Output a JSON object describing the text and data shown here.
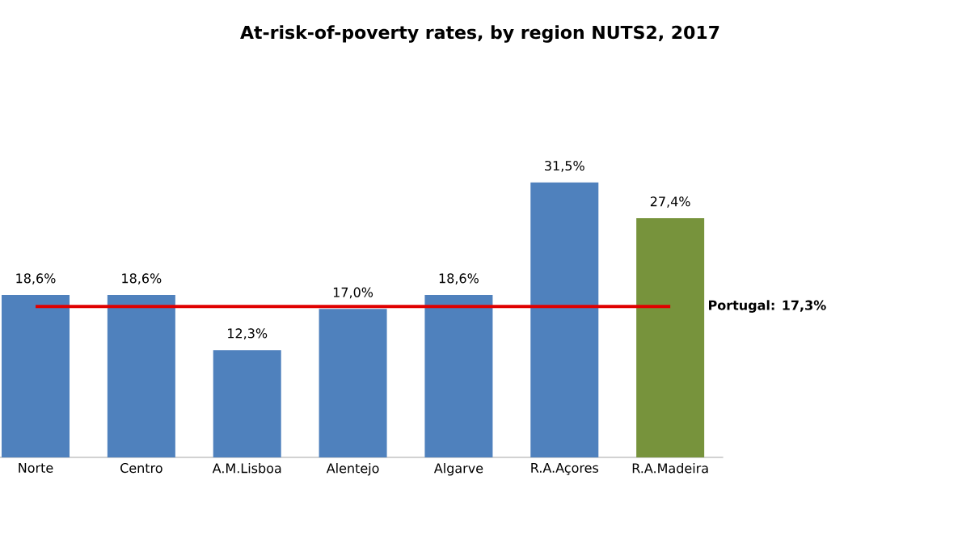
{
  "chart_data": {
    "type": "bar",
    "title": "At-risk-of-poverty rates,  by region NUTS2, 2017",
    "categories": [
      "Norte",
      "Centro",
      "A.M.Lisboa",
      "Alentejo",
      "Algarve",
      "R.A.Açores",
      "R.A.Madeira"
    ],
    "values": [
      18.6,
      18.6,
      12.3,
      17.0,
      18.6,
      31.5,
      27.4
    ],
    "value_labels": [
      "18,6%",
      "18,6%",
      "12,3%",
      "17,0%",
      "18,6%",
      "31,5%",
      "27,4%"
    ],
    "colors": [
      "#4f81bd",
      "#4f81bd",
      "#4f81bd",
      "#4f81bd",
      "#4f81bd",
      "#4f81bd",
      "#77933c"
    ],
    "ref_lines": [
      {
        "axis": "y",
        "value": 17.3,
        "label": "Portugal: 17,3%",
        "color": "#e00000"
      }
    ]
  }
}
